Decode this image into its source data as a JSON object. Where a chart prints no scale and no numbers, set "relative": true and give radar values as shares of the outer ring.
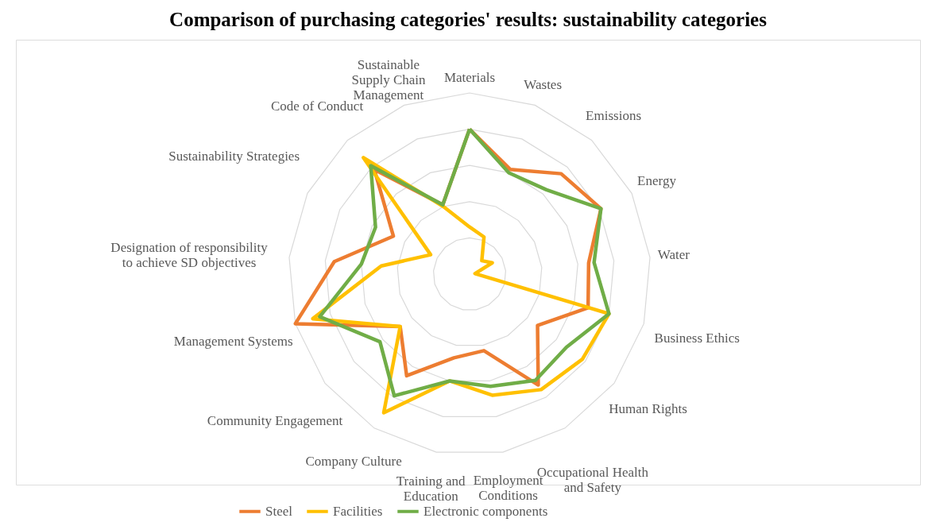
{
  "chart_data": {
    "type": "radar",
    "title": "Comparison of purchasing categories' results: sustainability categories",
    "relative": true,
    "grid": true,
    "legend": "bottom",
    "categories": [
      "Materials",
      "Wastes",
      "Emissions",
      "Energy",
      "Water",
      "Business Ethics",
      "Human Rights",
      "Occupational Health and Safety",
      "Employment Conditions",
      "Training and Education",
      "Company Culture",
      "Community Engagement",
      "Management Systems",
      "Designation of responsibility to achieve SD objectives",
      "Sustainability Strategies",
      "Code of Conduct",
      "Sustainable Supply Chain Management"
    ],
    "series": [
      {
        "name": "Steel",
        "color": "#ed7d31",
        "values": [
          0.8,
          0.62,
          0.75,
          0.81,
          0.66,
          0.68,
          0.47,
          0.72,
          0.43,
          0.47,
          0.66,
          0.48,
          1.0,
          0.75,
          0.47,
          0.78,
          0.41
        ]
      },
      {
        "name": "Facilities",
        "color": "#ffc000",
        "values": [
          0.26,
          0.22,
          0.1,
          0.14,
          0.03,
          0.8,
          0.78,
          0.75,
          0.68,
          0.6,
          0.9,
          0.48,
          0.9,
          0.49,
          0.24,
          0.87,
          0.4
        ]
      },
      {
        "name": "Electronic components",
        "color": "#70ad47",
        "values": [
          0.8,
          0.6,
          0.63,
          0.81,
          0.69,
          0.8,
          0.67,
          0.69,
          0.63,
          0.6,
          0.79,
          0.62,
          0.86,
          0.6,
          0.58,
          0.81,
          0.41
        ]
      }
    ]
  }
}
